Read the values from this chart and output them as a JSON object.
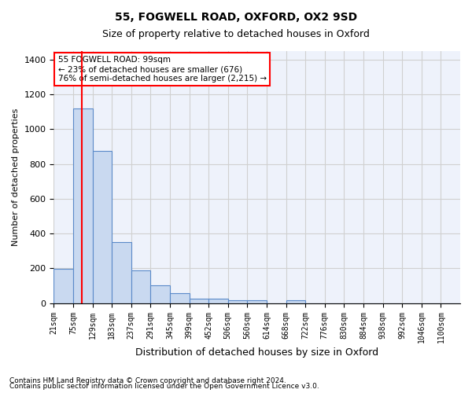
{
  "title1": "55, FOGWELL ROAD, OXFORD, OX2 9SD",
  "title2": "Size of property relative to detached houses in Oxford",
  "xlabel": "Distribution of detached houses by size in Oxford",
  "ylabel": "Number of detached properties",
  "bar_labels": [
    "21sqm",
    "75sqm",
    "129sqm",
    "183sqm",
    "237sqm",
    "291sqm",
    "345sqm",
    "399sqm",
    "452sqm",
    "506sqm",
    "560sqm",
    "614sqm",
    "668sqm",
    "722sqm",
    "776sqm",
    "830sqm",
    "884sqm",
    "938sqm",
    "992sqm",
    "1046sqm",
    "1100sqm"
  ],
  "bar_values": [
    195,
    1120,
    875,
    350,
    190,
    100,
    55,
    25,
    25,
    18,
    18,
    0,
    15,
    0,
    0,
    0,
    0,
    0,
    0,
    0,
    0
  ],
  "bar_color": "#c9d9f0",
  "bar_edge_color": "#5b8ac9",
  "ylim": [
    0,
    1450
  ],
  "yticks": [
    0,
    200,
    400,
    600,
    800,
    1000,
    1200,
    1400
  ],
  "grid_color": "#d0d0d0",
  "background_color": "#eef2fb",
  "annotation_text": "55 FOGWELL ROAD: 99sqm\n← 23% of detached houses are smaller (676)\n76% of semi-detached houses are larger (2,215) →",
  "footnote1": "Contains HM Land Registry data © Crown copyright and database right 2024.",
  "footnote2": "Contains public sector information licensed under the Open Government Licence v3.0."
}
